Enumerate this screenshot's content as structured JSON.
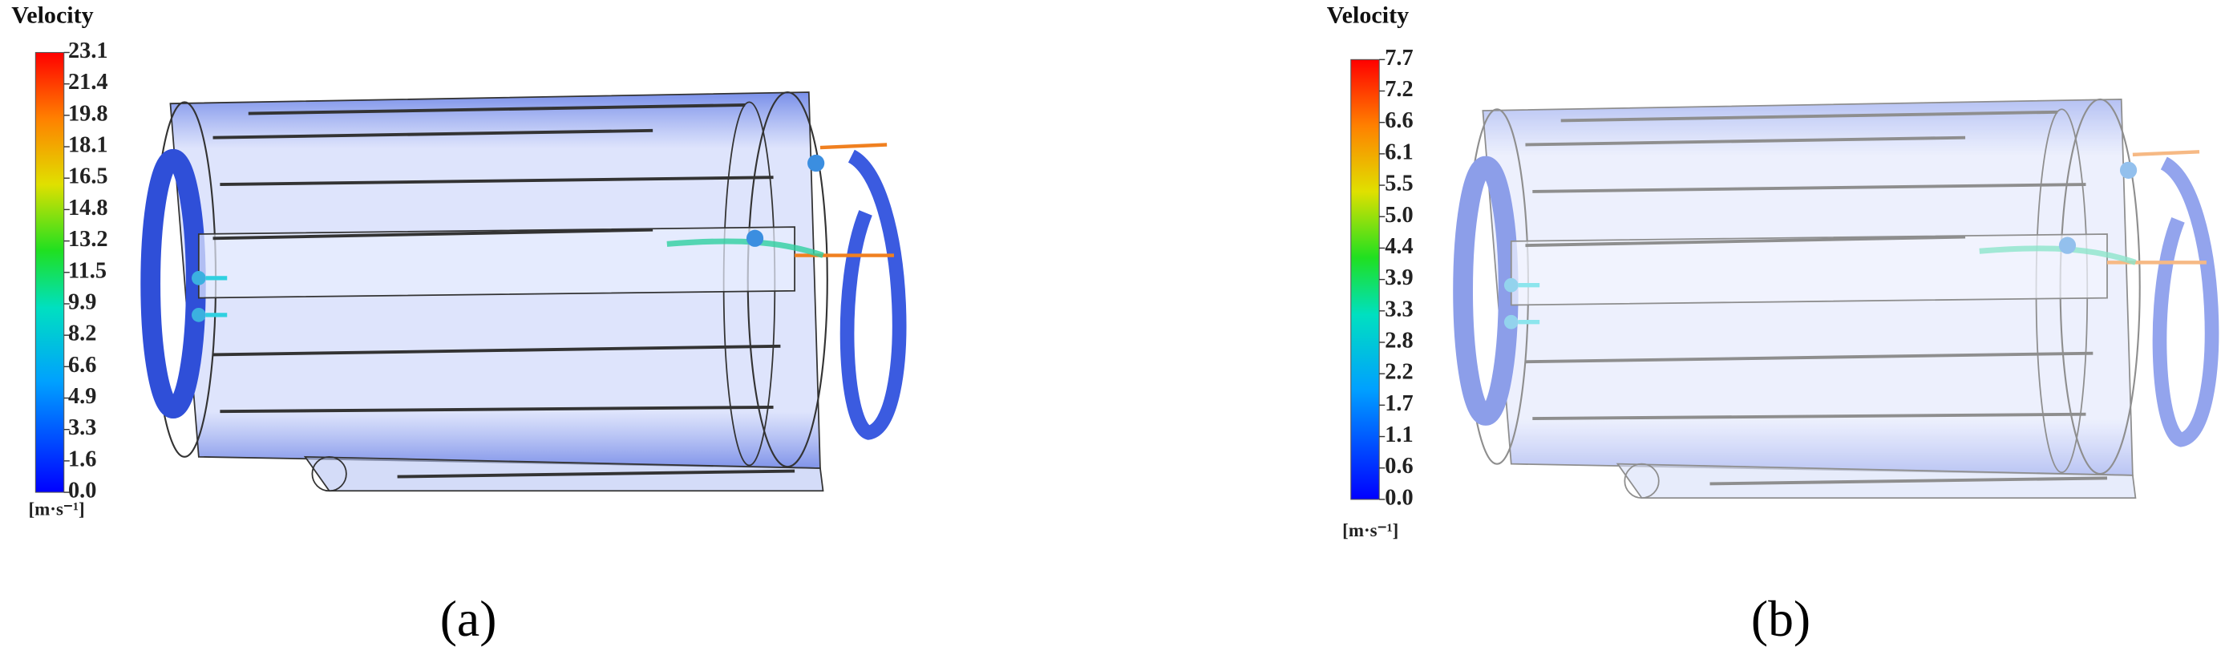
{
  "panels": [
    {
      "title": "Velocity",
      "ticks": [
        "23.1",
        "21.4",
        "19.8",
        "18.1",
        "16.5",
        "14.8",
        "13.2",
        "11.5",
        "9.9",
        "8.2",
        "6.6",
        "4.9",
        "3.3",
        "1.6",
        "0.0"
      ],
      "unit": "[m·s⁻¹]",
      "caption": "(a)"
    },
    {
      "title": "Velocity",
      "ticks": [
        "7.7",
        "7.2",
        "6.6",
        "6.1",
        "5.5",
        "5.0",
        "4.4",
        "3.9",
        "3.3",
        "2.8",
        "2.2",
        "1.7",
        "1.1",
        "0.6",
        "0.0"
      ],
      "unit": "[m·s⁻¹]",
      "caption": "(b)"
    }
  ]
}
